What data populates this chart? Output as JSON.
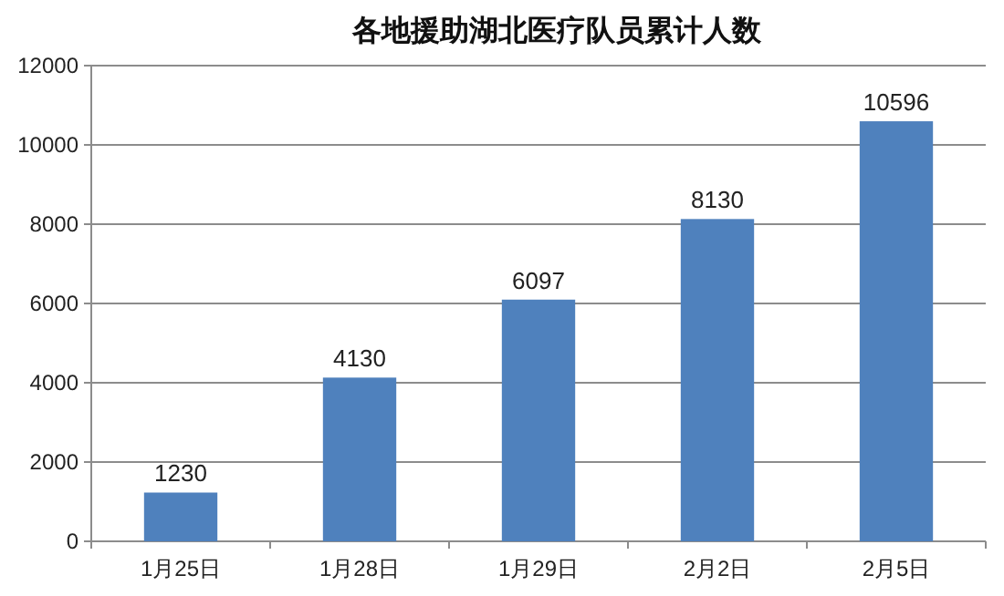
{
  "chart_data": {
    "type": "bar",
    "title": "各地援助湖北医疗队员累计人数",
    "categories": [
      "1月25日",
      "1月28日",
      "1月29日",
      "2月2日",
      "2月5日"
    ],
    "values": [
      1230,
      4130,
      6097,
      8130,
      10596
    ],
    "color": "#4f81bd",
    "ylim": [
      0,
      12000
    ],
    "yticks": [
      0,
      2000,
      4000,
      6000,
      8000,
      10000,
      12000
    ],
    "grid": "y",
    "data_labels": true
  }
}
